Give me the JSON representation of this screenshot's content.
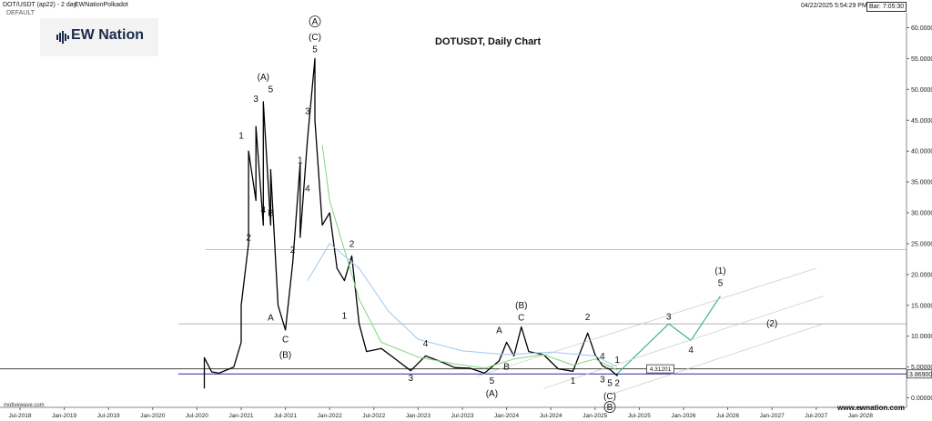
{
  "header": {
    "symbol": "DOT/USDT (ap22) - 2 day",
    "author": "EWNationPolkadot",
    "template": "DEFAULT",
    "datetime": "04/22/2025 5:54:29 PM",
    "bar_timer": "Bar: 7:05:30"
  },
  "logo": {
    "text": "EW Nation"
  },
  "footer": {
    "left": "motivewave.com",
    "right": "www.ewnation.com"
  },
  "colors": {
    "price": "#000000",
    "ma_green": "#7ed87e",
    "ma_blue": "#9cc8f0",
    "projection": "#3cb48c",
    "support": "#2a2aa0",
    "level": "#9a9a9a"
  },
  "chart_data": {
    "type": "line",
    "title": "DOTUSDT, Daily Chart",
    "xlabel": "",
    "ylabel": "",
    "ylim": [
      0,
      63
    ],
    "x_ticks": [
      "Jul-2018",
      "Jan-2019",
      "Jul-2019",
      "Jan-2020",
      "Jul-2020",
      "Jan-2021",
      "Jul-2021",
      "Jan-2022",
      "Jul-2022",
      "Jan-2023",
      "Jul-2023",
      "Jan-2024",
      "Jul-2024",
      "Jan-2025",
      "Jul-2025",
      "Jan-2026",
      "Jul-2026",
      "Jan-2027",
      "Jul-2027",
      "Jan-2028"
    ],
    "y_ticks": [
      "0.00000",
      "5.00000",
      "10.00000",
      "15.00000",
      "20.00000",
      "25.00000",
      "30.00000",
      "35.00000",
      "40.00000",
      "45.00000",
      "50.00000",
      "55.00000",
      "60.00000"
    ],
    "current_price_label": "3.86900",
    "level_box_label": "4.31201",
    "horizontal_levels": [
      24,
      12,
      4.7,
      3.87
    ],
    "series": [
      {
        "style": "price",
        "points": [
          [
            "2020-08",
            1.5
          ],
          [
            "2020-08",
            6.5
          ],
          [
            "2020-09",
            4.2
          ],
          [
            "2020-10",
            4.0
          ],
          [
            "2020-11",
            4.5
          ],
          [
            "2020-12",
            5.0
          ],
          [
            "2021-01",
            9
          ],
          [
            "2021-01",
            15
          ],
          [
            "2021-02",
            25
          ],
          [
            "2021-02",
            40
          ],
          [
            "2021-03",
            32
          ],
          [
            "2021-03",
            44
          ],
          [
            "2021-04",
            28
          ],
          [
            "2021-04",
            48
          ],
          [
            "2021-05",
            28
          ],
          [
            "2021-05",
            37
          ],
          [
            "2021-06",
            15
          ],
          [
            "2021-07",
            11
          ],
          [
            "2021-08",
            22
          ],
          [
            "2021-09",
            38
          ],
          [
            "2021-09",
            26
          ],
          [
            "2021-10",
            42
          ],
          [
            "2021-11",
            55
          ],
          [
            "2021-11",
            45
          ],
          [
            "2021-12",
            28
          ],
          [
            "2022-01",
            30
          ],
          [
            "2022-02",
            21
          ],
          [
            "2022-03",
            19
          ],
          [
            "2022-04",
            23
          ],
          [
            "2022-05",
            12
          ],
          [
            "2022-06",
            7.5
          ],
          [
            "2022-08",
            8.0
          ],
          [
            "2022-10",
            6.2
          ],
          [
            "2022-12",
            4.4
          ],
          [
            "2023-02",
            6.8
          ],
          [
            "2023-04",
            5.9
          ],
          [
            "2023-06",
            4.9
          ],
          [
            "2023-08",
            4.8
          ],
          [
            "2023-10",
            4.0
          ],
          [
            "2023-12",
            6.0
          ],
          [
            "2024-01",
            9.0
          ],
          [
            "2024-02",
            6.8
          ],
          [
            "2024-03",
            11.5
          ],
          [
            "2024-04",
            7.5
          ],
          [
            "2024-06",
            7.0
          ],
          [
            "2024-08",
            4.7
          ],
          [
            "2024-10",
            4.3
          ],
          [
            "2024-12",
            10.5
          ],
          [
            "2025-01",
            7.0
          ],
          [
            "2025-02",
            5.2
          ],
          [
            "2025-03",
            4.6
          ],
          [
            "2025-04",
            3.6
          ],
          [
            "2025-04",
            3.87
          ]
        ]
      },
      {
        "style": "ma_green",
        "points": [
          [
            "2021-12",
            41
          ],
          [
            "2022-01",
            32
          ],
          [
            "2022-03",
            24
          ],
          [
            "2022-05",
            16
          ],
          [
            "2022-08",
            9
          ],
          [
            "2023-01",
            6.6
          ],
          [
            "2023-06",
            5.5
          ],
          [
            "2023-10",
            4.8
          ],
          [
            "2024-02",
            6.3
          ],
          [
            "2024-06",
            7.0
          ],
          [
            "2024-10",
            5.3
          ],
          [
            "2025-01",
            6.3
          ],
          [
            "2025-04",
            4.5
          ]
        ]
      },
      {
        "style": "ma_blue",
        "points": [
          [
            "2021-10",
            19
          ],
          [
            "2022-01",
            25
          ],
          [
            "2022-05",
            21
          ],
          [
            "2022-09",
            14
          ],
          [
            "2023-01",
            9.5
          ],
          [
            "2023-07",
            7.6
          ],
          [
            "2024-01",
            7.0
          ],
          [
            "2024-07",
            7.4
          ],
          [
            "2025-01",
            6.8
          ],
          [
            "2025-04",
            5.0
          ]
        ]
      },
      {
        "style": "projection",
        "points": [
          [
            "2025-04",
            3.9
          ],
          [
            "2025-11",
            12
          ],
          [
            "2026-02",
            9.3
          ],
          [
            "2026-06",
            16.5
          ]
        ]
      },
      {
        "style": "channel",
        "points": [
          [
            "2023-09",
            3.5
          ],
          [
            "2027-07",
            21
          ]
        ]
      },
      {
        "style": "channel",
        "points": [
          [
            "2024-06",
            1.5
          ],
          [
            "2027-08",
            16.5
          ]
        ]
      },
      {
        "style": "channel",
        "points": [
          [
            "2025-03",
            0.5
          ],
          [
            "2027-08",
            12
          ]
        ]
      }
    ],
    "annotations": [
      {
        "text": "A",
        "circled": true,
        "x": "2021-11",
        "y": 60.5
      },
      {
        "text": "(C)",
        "x": "2021-11",
        "y": 58
      },
      {
        "text": "5",
        "x": "2021-11",
        "y": 56
      },
      {
        "text": "(A)",
        "x": "2021-04",
        "y": 51.5
      },
      {
        "text": "5",
        "x": "2021-05",
        "y": 49.5
      },
      {
        "text": "3",
        "x": "2021-03",
        "y": 48
      },
      {
        "text": "3",
        "x": "2021-10",
        "y": 46
      },
      {
        "text": "1",
        "x": "2021-01",
        "y": 42
      },
      {
        "text": "1",
        "x": "2021-09",
        "y": 38
      },
      {
        "text": "4",
        "x": "2021-04",
        "y": 30
      },
      {
        "text": "B",
        "x": "2021-05",
        "y": 29.5
      },
      {
        "text": "4",
        "x": "2021-10",
        "y": 33.5
      },
      {
        "text": "2",
        "x": "2021-02",
        "y": 25.5
      },
      {
        "text": "2",
        "x": "2021-08",
        "y": 23.5
      },
      {
        "text": "2",
        "x": "2022-04",
        "y": 24.5
      },
      {
        "text": "A",
        "x": "2021-05",
        "y": 12.5
      },
      {
        "text": "C",
        "x": "2021-07",
        "y": 9
      },
      {
        "text": "(B)",
        "x": "2021-07",
        "y": 6.5
      },
      {
        "text": "1",
        "x": "2022-03",
        "y": 12.8
      },
      {
        "text": "4",
        "x": "2023-02",
        "y": 8.3
      },
      {
        "text": "3",
        "x": "2022-12",
        "y": 2.7
      },
      {
        "text": "5",
        "x": "2023-11",
        "y": 2.3
      },
      {
        "text": "(A)",
        "x": "2023-11",
        "y": 0.2
      },
      {
        "text": "A",
        "x": "2023-12",
        "y": 10.5
      },
      {
        "text": "(B)",
        "x": "2024-03",
        "y": 14.5
      },
      {
        "text": "C",
        "x": "2024-03",
        "y": 12.5
      },
      {
        "text": "B",
        "x": "2024-01",
        "y": 4.6
      },
      {
        "text": "1",
        "x": "2024-10",
        "y": 2.3
      },
      {
        "text": "2",
        "x": "2024-12",
        "y": 12.6
      },
      {
        "text": "4",
        "x": "2025-02",
        "y": 6.3
      },
      {
        "text": "1",
        "x": "2025-04",
        "y": 5.7
      },
      {
        "text": "3",
        "x": "2025-02",
        "y": 2.5
      },
      {
        "text": "5",
        "x": "2025-03",
        "y": 1.9
      },
      {
        "text": "2",
        "x": "2025-04",
        "y": 1.9
      },
      {
        "text": "(C)",
        "x": "2025-03",
        "y": -0.2
      },
      {
        "text": "B",
        "circled": true,
        "x": "2025-03",
        "y": -2.0
      },
      {
        "text": "3",
        "x": "2025-11",
        "y": 12.7
      },
      {
        "text": "4",
        "x": "2026-02",
        "y": 7.3
      },
      {
        "text": "(1)",
        "x": "2026-06",
        "y": 20.1
      },
      {
        "text": "5",
        "x": "2026-06",
        "y": 18.1
      },
      {
        "text": "(2)",
        "x": "2027-01",
        "y": 11.6
      }
    ],
    "grid": false,
    "legend": "none"
  }
}
